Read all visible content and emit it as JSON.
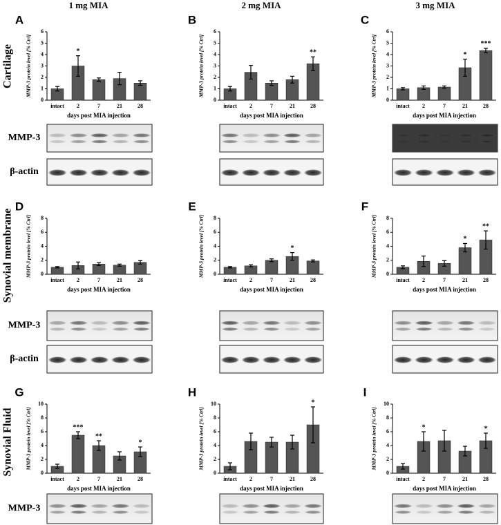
{
  "columns": [
    "1 mg MIA",
    "2 mg MIA",
    "3 mg MIA"
  ],
  "rows": [
    "Cartilage",
    "Synovial membrane",
    "Synovial Fluid"
  ],
  "blot_labels": [
    [
      "MMP-3",
      "β-actin"
    ],
    [
      "MMP-3",
      "β-actin"
    ],
    [
      "MMP-3"
    ]
  ],
  "chart_data": [
    {
      "type": "bar",
      "panel": "A",
      "ylabel": "MMP-3 protein level [% Ctrl]",
      "xlabel": "days post MIA injection",
      "categories": [
        "intact",
        "2",
        "7",
        "21",
        "28"
      ],
      "values": [
        1.0,
        3.0,
        1.8,
        1.9,
        1.5
      ],
      "errors": [
        0.2,
        0.9,
        0.15,
        0.55,
        0.2
      ],
      "stars": [
        null,
        "*",
        null,
        null,
        null
      ],
      "color": "#555555",
      "ylim": [
        0,
        6
      ],
      "yticks": [
        0,
        1,
        2,
        3,
        4,
        5,
        6
      ]
    },
    {
      "type": "bar",
      "panel": "B",
      "ylabel": "MMP-3 protein level [% Ctrl]",
      "xlabel": "days post MIA injection",
      "categories": [
        "intact",
        "2",
        "7",
        "21",
        "28"
      ],
      "values": [
        1.0,
        2.45,
        1.5,
        1.8,
        3.2
      ],
      "errors": [
        0.2,
        0.6,
        0.2,
        0.3,
        0.6
      ],
      "stars": [
        null,
        null,
        null,
        null,
        "**"
      ],
      "color": "#555555",
      "ylim": [
        0,
        6
      ],
      "yticks": [
        0,
        1,
        2,
        3,
        4,
        5,
        6
      ]
    },
    {
      "type": "bar",
      "panel": "C",
      "ylabel": "MMP-3 protein level [% Ctrl]",
      "xlabel": "days post MIA injection",
      "categories": [
        "intact",
        "2",
        "7",
        "21",
        "28"
      ],
      "values": [
        1.0,
        1.1,
        1.15,
        2.85,
        4.35
      ],
      "errors": [
        0.1,
        0.15,
        0.1,
        0.75,
        0.2
      ],
      "stars": [
        null,
        null,
        null,
        "*",
        "***"
      ],
      "color": "#555555",
      "ylim": [
        0,
        6
      ],
      "yticks": [
        0,
        1,
        2,
        3,
        4,
        5,
        6
      ]
    },
    {
      "type": "bar",
      "panel": "D",
      "ylabel": "MMP-3 protein level [% Ctrl]",
      "xlabel": "days post MIA injection",
      "categories": [
        "intact",
        "2",
        "7",
        "21",
        "28"
      ],
      "values": [
        1.0,
        1.25,
        1.45,
        1.3,
        1.7
      ],
      "errors": [
        0.1,
        0.5,
        0.2,
        0.15,
        0.25
      ],
      "stars": [
        null,
        null,
        null,
        null,
        null
      ],
      "color": "#555555",
      "ylim": [
        0,
        8
      ],
      "yticks": [
        0,
        2,
        4,
        6,
        8
      ]
    },
    {
      "type": "bar",
      "panel": "E",
      "ylabel": "MMP-3 protein level [% Ctrl]",
      "xlabel": "days post MIA injection",
      "categories": [
        "intact",
        "2",
        "7",
        "21",
        "28"
      ],
      "values": [
        1.0,
        1.2,
        2.0,
        2.55,
        1.9
      ],
      "errors": [
        0.1,
        0.15,
        0.2,
        0.55,
        0.15
      ],
      "stars": [
        null,
        null,
        null,
        "*",
        null
      ],
      "color": "#555555",
      "ylim": [
        0,
        8
      ],
      "yticks": [
        0,
        2,
        4,
        6,
        8
      ]
    },
    {
      "type": "bar",
      "panel": "F",
      "ylabel": "MMP-3 protein level [% Ctrl]",
      "xlabel": "days post MIA injection",
      "categories": [
        "intact",
        "2",
        "7",
        "21",
        "28"
      ],
      "values": [
        1.0,
        1.85,
        1.55,
        3.8,
        4.9
      ],
      "errors": [
        0.2,
        0.75,
        0.4,
        0.6,
        1.3
      ],
      "stars": [
        null,
        null,
        null,
        "*",
        "**"
      ],
      "color": "#555555",
      "ylim": [
        0,
        8
      ],
      "yticks": [
        0,
        2,
        4,
        6,
        8
      ]
    },
    {
      "type": "bar",
      "panel": "G",
      "ylabel": "MMP-3 protein level [% Ctrl]",
      "xlabel": "days post MIA injection",
      "categories": [
        "intact",
        "2",
        "7",
        "21",
        "28"
      ],
      "values": [
        1.0,
        5.5,
        4.0,
        2.5,
        3.1
      ],
      "errors": [
        0.3,
        0.5,
        0.7,
        0.6,
        0.7
      ],
      "stars": [
        null,
        "***",
        "**",
        null,
        "*"
      ],
      "color": "#555555",
      "ylim": [
        0,
        10
      ],
      "yticks": [
        0,
        2,
        4,
        6,
        8,
        10
      ]
    },
    {
      "type": "bar",
      "panel": "H",
      "ylabel": "MMP-3 protein level [% Ctrl]",
      "xlabel": "days post MIA injection",
      "categories": [
        "intact",
        "2",
        "7",
        "21",
        "28"
      ],
      "values": [
        1.0,
        4.6,
        4.5,
        4.5,
        7.0
      ],
      "errors": [
        0.5,
        1.2,
        0.7,
        1.0,
        2.6
      ],
      "stars": [
        null,
        null,
        null,
        null,
        "*"
      ],
      "color": "#555555",
      "ylim": [
        0,
        10
      ],
      "yticks": [
        0,
        2,
        4,
        6,
        8,
        10
      ]
    },
    {
      "type": "bar",
      "panel": "I",
      "ylabel": "MMP-3 protein level [% Ctrl]",
      "xlabel": "days post MIA injection",
      "categories": [
        "intact",
        "2",
        "7",
        "21",
        "28"
      ],
      "values": [
        1.0,
        4.6,
        4.7,
        3.2,
        4.7
      ],
      "errors": [
        0.4,
        1.4,
        1.5,
        0.7,
        1.1
      ],
      "stars": [
        null,
        "*",
        null,
        null,
        "*"
      ],
      "color": "#555555",
      "ylim": [
        0,
        10
      ],
      "yticks": [
        0,
        2,
        4,
        6,
        8,
        10
      ]
    }
  ]
}
